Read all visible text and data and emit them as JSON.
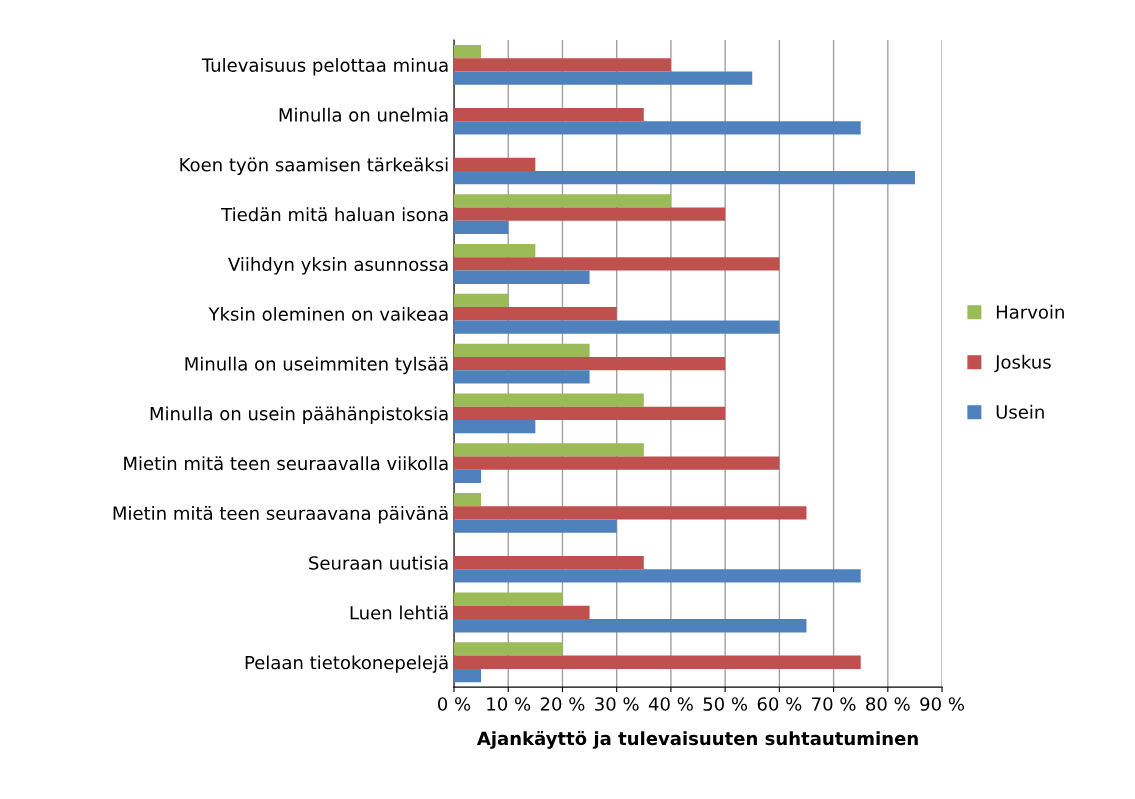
{
  "chart_data": {
    "type": "bar",
    "orientation": "horizontal",
    "xlabel": "Ajankäyttö ja tulevaisuuten suhtautuminen",
    "categories": [
      "Tulevaisuus pelottaa minua",
      "Minulla on unelmia",
      "Koen työn saamisen tärkeäksi",
      "Tiedän mitä haluan isona",
      "Viihdyn yksin asunnossa",
      "Yksin oleminen on vaikeaa",
      "Minulla on useimmiten tylsää",
      "Minulla on usein päähänpistoksia",
      "Mietin mitä teen seuraavalla viikolla",
      "Mietin mitä teen seuraavana päivänä",
      "Seuraan uutisia",
      "Luen lehtiä",
      "Pelaan tietokonepelejä"
    ],
    "series": [
      {
        "name": "Harvoin",
        "color": "#9bbb59",
        "values": [
          5,
          0,
          0,
          40,
          15,
          10,
          25,
          35,
          35,
          5,
          0,
          20,
          20
        ]
      },
      {
        "name": "Joskus",
        "color": "#c0504d",
        "values": [
          40,
          35,
          15,
          50,
          60,
          30,
          50,
          50,
          60,
          65,
          35,
          25,
          75
        ]
      },
      {
        "name": "Usein",
        "color": "#4f81bd",
        "values": [
          55,
          75,
          85,
          10,
          25,
          60,
          25,
          15,
          5,
          30,
          75,
          65,
          5
        ]
      }
    ],
    "xlim": [
      0,
      90
    ],
    "xticks": [
      {
        "value": 0,
        "label": "0 %"
      },
      {
        "value": 10,
        "label": "10 %"
      },
      {
        "value": 20,
        "label": "20 %"
      },
      {
        "value": 30,
        "label": "30 %"
      },
      {
        "value": 40,
        "label": "40 %"
      },
      {
        "value": 50,
        "label": "50 %"
      },
      {
        "value": 60,
        "label": "60 %"
      },
      {
        "value": 70,
        "label": "70 %"
      },
      {
        "value": 80,
        "label": "80 %"
      },
      {
        "value": 90,
        "label": "90 %"
      }
    ],
    "grid": "x",
    "legend": "right"
  }
}
